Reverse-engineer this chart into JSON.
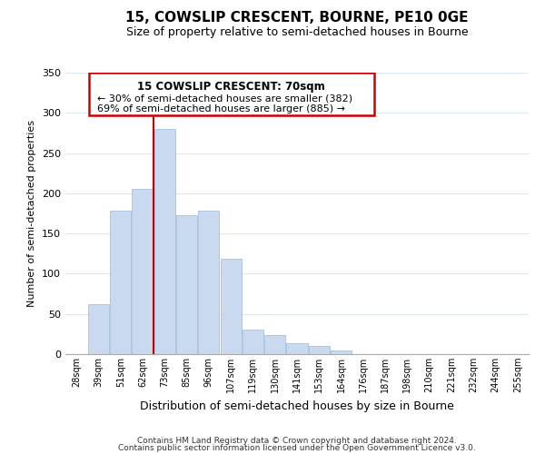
{
  "title": "15, COWSLIP CRESCENT, BOURNE, PE10 0GE",
  "subtitle": "Size of property relative to semi-detached houses in Bourne",
  "xlabel": "Distribution of semi-detached houses by size in Bourne",
  "ylabel": "Number of semi-detached properties",
  "bar_labels": [
    "28sqm",
    "39sqm",
    "51sqm",
    "62sqm",
    "73sqm",
    "85sqm",
    "96sqm",
    "107sqm",
    "119sqm",
    "130sqm",
    "141sqm",
    "153sqm",
    "164sqm",
    "176sqm",
    "187sqm",
    "198sqm",
    "210sqm",
    "221sqm",
    "232sqm",
    "244sqm",
    "255sqm"
  ],
  "bar_values": [
    0,
    62,
    178,
    205,
    280,
    173,
    178,
    118,
    30,
    24,
    14,
    10,
    5,
    0,
    0,
    0,
    0,
    0,
    0,
    0,
    0
  ],
  "bar_color": "#c9daf0",
  "bar_edge_color": "#a8c0dc",
  "vline_color": "#cc0000",
  "ylim": [
    0,
    350
  ],
  "annotation_title": "15 COWSLIP CRESCENT: 70sqm",
  "annotation_line1": "← 30% of semi-detached houses are smaller (382)",
  "annotation_line2": "69% of semi-detached houses are larger (885) →",
  "footer_line1": "Contains HM Land Registry data © Crown copyright and database right 2024.",
  "footer_line2": "Contains public sector information licensed under the Open Government Licence v3.0.",
  "background_color": "#ffffff",
  "grid_color": "#dde8f2"
}
